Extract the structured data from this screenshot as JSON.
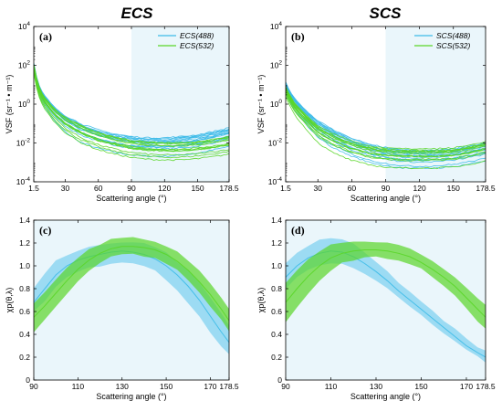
{
  "figure": {
    "column_titles": [
      "ECS",
      "SCS"
    ]
  },
  "colors": {
    "blue": "#3dbbe8",
    "green": "#5ad628",
    "shade": "#eaf6fb"
  },
  "chart_data": [
    {
      "id": "a",
      "panel_label": "(a)",
      "type": "line",
      "xlabel": "Scattering angle (°)",
      "ylabel": "VSF (sr⁻¹ • m⁻¹)",
      "xticks": [
        "1.5",
        "30",
        "60",
        "90",
        "120",
        "150",
        "178.5"
      ],
      "xlim": [
        1.5,
        178.5
      ],
      "ylim": [
        0.0001,
        10000
      ],
      "yscale": "log",
      "yticks": [
        -4,
        -2,
        0,
        2,
        4
      ],
      "shaded_region": [
        90,
        178.5
      ],
      "legend": [
        "ECS(488)",
        "ECS(532)"
      ],
      "x": [
        1.5,
        5,
        10,
        20,
        30,
        45,
        60,
        75,
        90,
        105,
        120,
        135,
        150,
        165,
        178.5
      ],
      "series": [
        {
          "name": "ECS(488)",
          "y": [
            120,
            12,
            3.0,
            0.6,
            0.2,
            0.07,
            0.035,
            0.022,
            0.016,
            0.014,
            0.014,
            0.016,
            0.02,
            0.03,
            0.045
          ],
          "spread": [
            0.2,
            1.2
          ],
          "count": 14
        },
        {
          "name": "ECS(532)",
          "y": [
            90,
            9,
            2.0,
            0.4,
            0.13,
            0.045,
            0.02,
            0.012,
            0.008,
            0.0065,
            0.006,
            0.006,
            0.007,
            0.009,
            0.012
          ],
          "spread": [
            0.25,
            1.5
          ],
          "count": 12
        }
      ]
    },
    {
      "id": "b",
      "panel_label": "(b)",
      "type": "line",
      "xlabel": "Scattering angle (°)",
      "ylabel": "VSF (sr⁻¹ • m⁻¹)",
      "xticks": [
        "1.5",
        "30",
        "60",
        "90",
        "120",
        "150",
        "178.5"
      ],
      "xlim": [
        1.5,
        178.5
      ],
      "ylim": [
        0.0001,
        10000
      ],
      "yscale": "log",
      "yticks": [
        -4,
        -2,
        0,
        2,
        4
      ],
      "shaded_region": [
        90,
        178.5
      ],
      "legend": [
        "SCS(488)",
        "SCS(532)"
      ],
      "x": [
        1.5,
        5,
        10,
        20,
        30,
        45,
        60,
        75,
        90,
        105,
        120,
        135,
        150,
        165,
        178.5
      ],
      "series": [
        {
          "name": "SCS(488)",
          "y": [
            12,
            4,
            1.5,
            0.35,
            0.1,
            0.03,
            0.012,
            0.006,
            0.004,
            0.003,
            0.0028,
            0.003,
            0.0035,
            0.005,
            0.007
          ],
          "spread": [
            0.15,
            1.3
          ],
          "count": 14
        },
        {
          "name": "SCS(532)",
          "y": [
            8,
            3,
            1.0,
            0.25,
            0.07,
            0.025,
            0.011,
            0.0065,
            0.005,
            0.0045,
            0.0045,
            0.0045,
            0.005,
            0.007,
            0.011
          ],
          "spread": [
            0.15,
            1.0
          ],
          "count": 12
        }
      ]
    },
    {
      "id": "c",
      "panel_label": "(c)",
      "type": "area",
      "xlabel": "Scattering angle (°)",
      "ylabel": "χp(θ,λ)",
      "xticks": [
        "90",
        "110",
        "130",
        "150",
        "170",
        "178.5"
      ],
      "xlim": [
        90,
        178.5
      ],
      "ylim": [
        0,
        1.4
      ],
      "yticks": [
        "0",
        "0.2",
        "0.4",
        "0.6",
        "0.8",
        "1.0",
        "1.2",
        "1.4"
      ],
      "x": [
        90,
        95,
        100,
        105,
        110,
        115,
        120,
        125,
        130,
        135,
        140,
        145,
        150,
        155,
        160,
        165,
        170,
        175,
        178.5
      ],
      "series": [
        {
          "name": "488",
          "mean": [
            0.68,
            0.8,
            0.92,
            1.0,
            1.05,
            1.08,
            1.1,
            1.12,
            1.13,
            1.12,
            1.1,
            1.06,
            1.0,
            0.92,
            0.82,
            0.7,
            0.56,
            0.42,
            0.33
          ],
          "lower": [
            0.6,
            0.7,
            0.82,
            0.9,
            0.95,
            0.98,
            1.0,
            1.02,
            1.03,
            1.02,
            0.99,
            0.95,
            0.88,
            0.79,
            0.68,
            0.55,
            0.42,
            0.3,
            0.22
          ],
          "upper": [
            0.8,
            0.94,
            1.04,
            1.1,
            1.13,
            1.16,
            1.18,
            1.2,
            1.2,
            1.2,
            1.19,
            1.16,
            1.11,
            1.04,
            0.96,
            0.86,
            0.72,
            0.58,
            0.48
          ]
        },
        {
          "name": "532",
          "mean": [
            0.55,
            0.65,
            0.76,
            0.87,
            0.97,
            1.05,
            1.11,
            1.15,
            1.17,
            1.17,
            1.16,
            1.14,
            1.1,
            1.04,
            0.96,
            0.86,
            0.75,
            0.62,
            0.52
          ],
          "lower": [
            0.42,
            0.52,
            0.64,
            0.76,
            0.87,
            0.96,
            1.03,
            1.08,
            1.1,
            1.1,
            1.09,
            1.06,
            1.02,
            0.96,
            0.88,
            0.77,
            0.65,
            0.52,
            0.42
          ],
          "upper": [
            0.68,
            0.78,
            0.88,
            0.98,
            1.07,
            1.14,
            1.19,
            1.23,
            1.25,
            1.25,
            1.23,
            1.21,
            1.18,
            1.13,
            1.05,
            0.95,
            0.84,
            0.72,
            0.62
          ]
        }
      ]
    },
    {
      "id": "d",
      "panel_label": "(d)",
      "type": "area",
      "xlabel": "Scattering angle (°)",
      "ylabel": "χp(θ,λ)",
      "xticks": [
        "90",
        "110",
        "130",
        "150",
        "170",
        "178.5"
      ],
      "xlim": [
        90,
        178.5
      ],
      "ylim": [
        0,
        1.4
      ],
      "yticks": [
        "0",
        "0.2",
        "0.4",
        "0.6",
        "0.8",
        "1.0",
        "1.2",
        "1.4"
      ],
      "x": [
        90,
        95,
        100,
        105,
        110,
        115,
        120,
        125,
        130,
        135,
        140,
        145,
        150,
        155,
        160,
        165,
        170,
        175,
        178.5
      ],
      "series": [
        {
          "name": "488",
          "mean": [
            0.9,
            1.0,
            1.07,
            1.11,
            1.13,
            1.12,
            1.08,
            1.02,
            0.95,
            0.87,
            0.78,
            0.7,
            0.62,
            0.54,
            0.46,
            0.38,
            0.3,
            0.24,
            0.2
          ],
          "lower": [
            0.8,
            0.9,
            0.97,
            1.01,
            1.03,
            1.02,
            0.99,
            0.93,
            0.87,
            0.8,
            0.72,
            0.64,
            0.57,
            0.49,
            0.41,
            0.34,
            0.26,
            0.2,
            0.16
          ],
          "upper": [
            1.02,
            1.12,
            1.18,
            1.22,
            1.24,
            1.23,
            1.19,
            1.12,
            1.04,
            0.95,
            0.85,
            0.77,
            0.68,
            0.6,
            0.52,
            0.44,
            0.36,
            0.29,
            0.25
          ]
        },
        {
          "name": "532",
          "mean": [
            0.68,
            0.8,
            0.91,
            1.0,
            1.07,
            1.11,
            1.13,
            1.14,
            1.14,
            1.13,
            1.11,
            1.08,
            1.03,
            0.97,
            0.9,
            0.82,
            0.72,
            0.62,
            0.55
          ],
          "lower": [
            0.5,
            0.63,
            0.76,
            0.87,
            0.96,
            1.02,
            1.05,
            1.07,
            1.08,
            1.07,
            1.05,
            1.02,
            0.97,
            0.91,
            0.83,
            0.74,
            0.63,
            0.52,
            0.45
          ],
          "upper": [
            0.86,
            0.97,
            1.06,
            1.13,
            1.18,
            1.21,
            1.22,
            1.22,
            1.21,
            1.2,
            1.18,
            1.15,
            1.1,
            1.04,
            0.97,
            0.9,
            0.81,
            0.72,
            0.66
          ]
        }
      ]
    }
  ]
}
